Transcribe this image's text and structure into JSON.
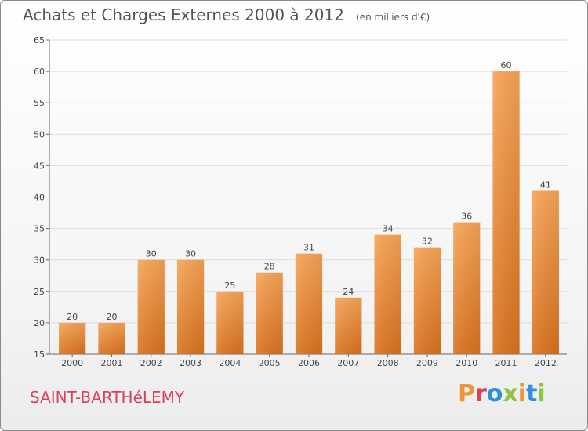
{
  "chart_data": {
    "type": "bar",
    "title": "Achats et Charges Externes 2000 à 2012",
    "subtitle": "(en milliers d'€)",
    "categories": [
      "2000",
      "2001",
      "2002",
      "2003",
      "2004",
      "2005",
      "2006",
      "2007",
      "2008",
      "2009",
      "2010",
      "2011",
      "2012"
    ],
    "values": [
      20,
      20,
      30,
      30,
      25,
      28,
      31,
      24,
      34,
      32,
      36,
      60,
      41
    ],
    "ylim": [
      15,
      65
    ],
    "yticks": [
      15,
      20,
      25,
      30,
      35,
      40,
      45,
      50,
      55,
      60,
      65
    ],
    "grid": true,
    "bar_color": "#f0943c",
    "xlabel": "",
    "ylabel": ""
  },
  "footer": {
    "town": "SAINT-BARTHéLEMY",
    "logo_text": "Proxiti",
    "logo_colors": [
      "#f0943c",
      "#d8405c",
      "#2f8fd8",
      "#8cc63f",
      "#f0943c",
      "#2f8fd8",
      "#8cc63f"
    ]
  }
}
